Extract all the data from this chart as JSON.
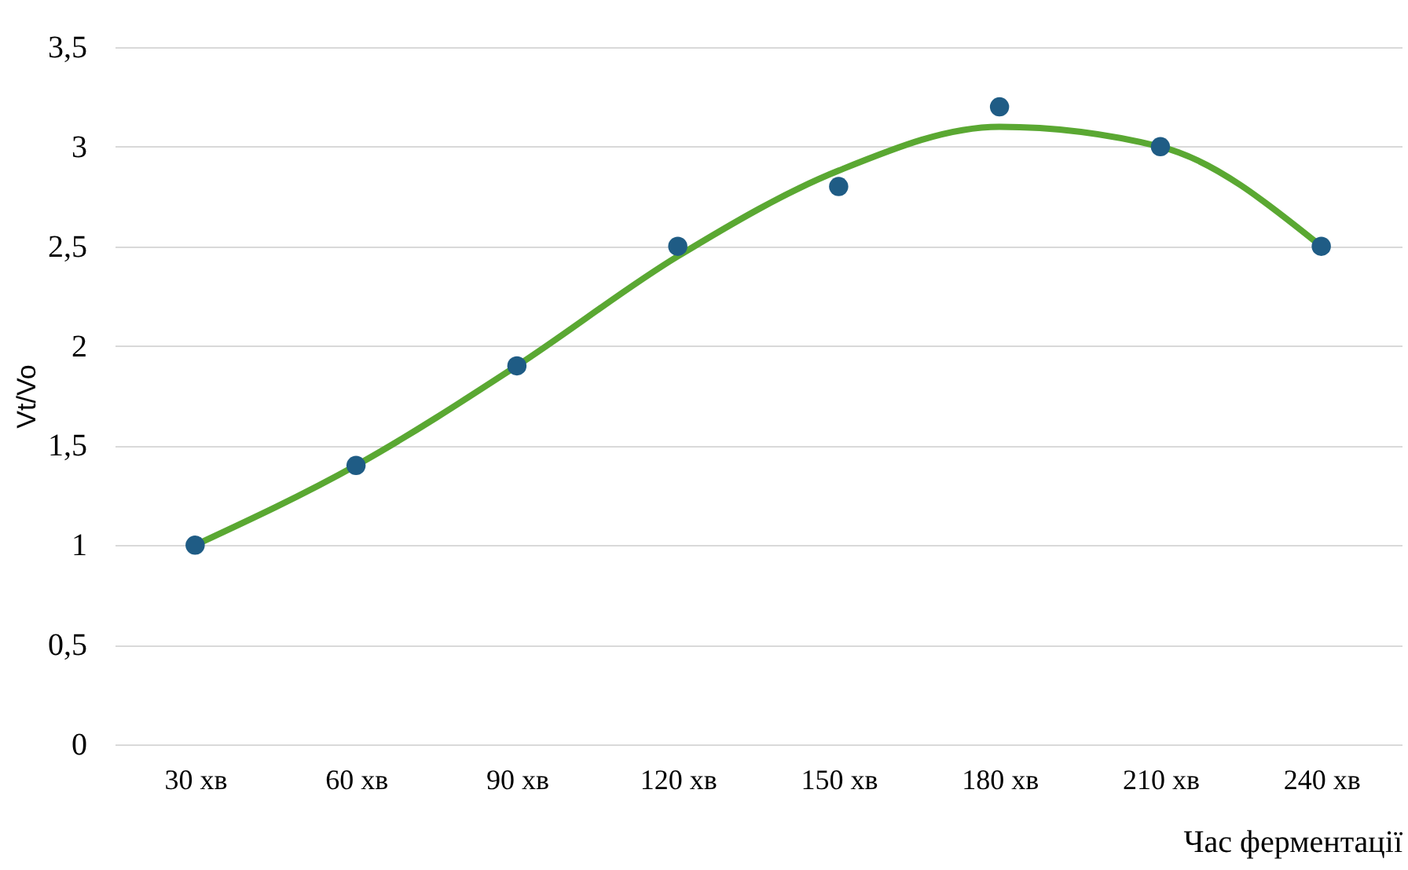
{
  "chart_data": {
    "type": "scatter",
    "xlabel": "Час ферментації",
    "ylabel": "Vt/Vo",
    "categories": [
      "30 хв",
      "60 хв",
      "90 хв",
      "120 хв",
      "150 хв",
      "180 хв",
      "210 хв",
      "240 хв"
    ],
    "series": [
      {
        "color": "#1f5c85",
        "values": [
          1,
          1.4,
          1.9,
          2.5,
          2.8,
          3.2,
          3.0,
          2.5
        ],
        "marker": "circle"
      },
      {
        "type": "line",
        "color": "#5aa832",
        "x": [
          "30 хв",
          "60 хв",
          "90 хв",
          "120 хв",
          "150 хв",
          "180 хв",
          "210 хв",
          "240 хв"
        ],
        "values": [
          1.0,
          1.4,
          1.9,
          2.45,
          2.88,
          3.1,
          3.0,
          2.5
        ],
        "line_style": "solid",
        "marker": "none"
      }
    ],
    "ylim": [
      0,
      3.5
    ],
    "yticks": [
      0,
      {
        "value": 0.5,
        "label": "0,5"
      },
      1,
      {
        "value": 1.5,
        "label": "1,5"
      },
      2,
      {
        "value": 2.5,
        "label": "2,5"
      },
      3,
      {
        "value": 3.5,
        "label": "3,5"
      }
    ],
    "grid": "y"
  }
}
